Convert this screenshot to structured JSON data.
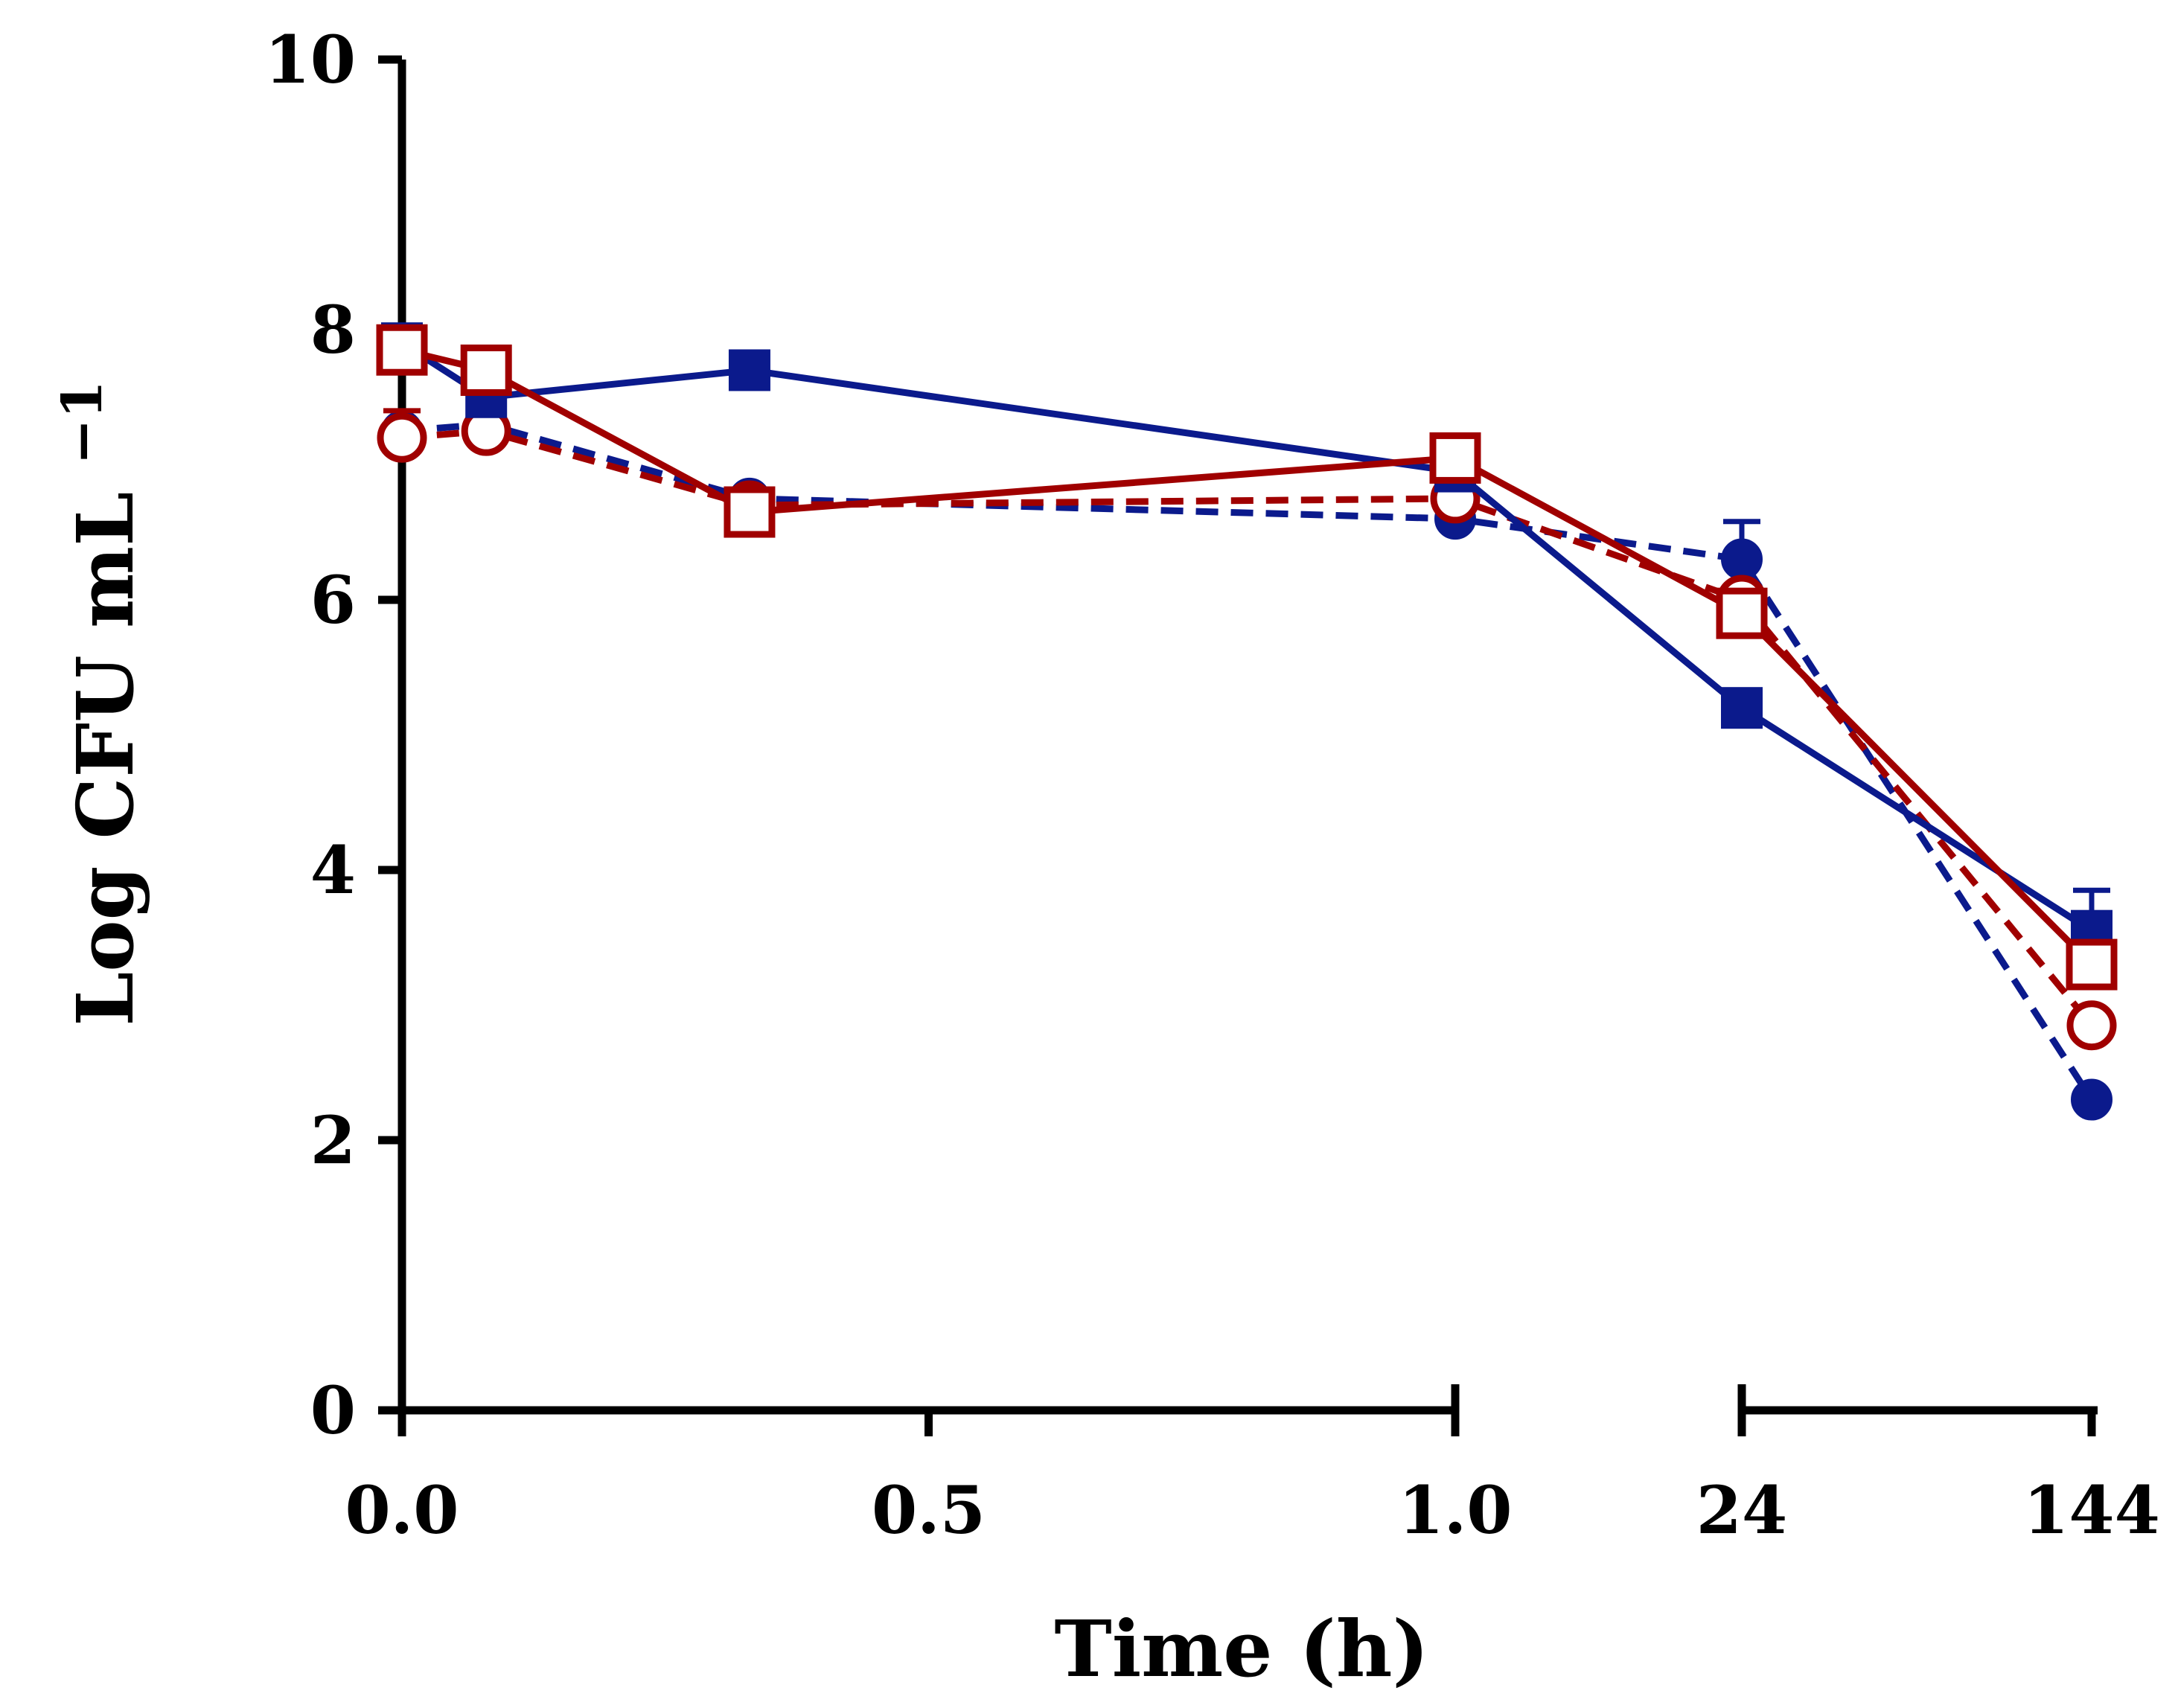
{
  "chart_data": {
    "type": "line",
    "title": "",
    "xlabel": "Time (h)",
    "ylabel": "Log CFU mL",
    "ylabel_superscript": "−1",
    "ylim": [
      0,
      10
    ],
    "yticks": [
      "0",
      "2",
      "4",
      "6",
      "8",
      "10"
    ],
    "xticks": [
      "0.0",
      "0.5",
      "1.0",
      "24",
      "144"
    ],
    "x_axis_note": "broken axis: linear 0.0–1.0 h, then segment 24–144 h",
    "series": [
      {
        "name": "blue solid filled square",
        "color": "#0b1a8c",
        "line": "solid",
        "marker": "square",
        "filled": true,
        "points": [
          {
            "x": "0.0",
            "y": 7.9
          },
          {
            "x": "0.08",
            "y": 7.5,
            "err": 0.12
          },
          {
            "x": "0.33",
            "y": 7.7
          },
          {
            "x": "1.0",
            "y": 6.95
          },
          {
            "x": "24",
            "y": 5.2
          },
          {
            "x": "144",
            "y": 3.55,
            "err": 0.3
          }
        ]
      },
      {
        "name": "blue dashed filled circle",
        "color": "#0b1a8c",
        "line": "dashed",
        "marker": "circle",
        "filled": true,
        "points": [
          {
            "x": "0.0",
            "y": 7.25
          },
          {
            "x": "0.08",
            "y": 7.3
          },
          {
            "x": "0.33",
            "y": 6.75
          },
          {
            "x": "1.0",
            "y": 6.6
          },
          {
            "x": "24",
            "y": 6.3,
            "err": 0.28
          },
          {
            "x": "144",
            "y": 2.3
          }
        ]
      },
      {
        "name": "red solid open square",
        "color": "#a00000",
        "line": "solid",
        "marker": "square",
        "filled": false,
        "points": [
          {
            "x": "0.0",
            "y": 7.85
          },
          {
            "x": "0.08",
            "y": 7.7
          },
          {
            "x": "0.33",
            "y": 6.65
          },
          {
            "x": "1.0",
            "y": 7.05
          },
          {
            "x": "24",
            "y": 5.9
          },
          {
            "x": "144",
            "y": 3.3
          }
        ]
      },
      {
        "name": "red dashed open circle",
        "color": "#a00000",
        "line": "dashed",
        "marker": "circle",
        "filled": false,
        "points": [
          {
            "x": "0.0",
            "y": 7.2,
            "err": 0.2
          },
          {
            "x": "0.08",
            "y": 7.25,
            "err": 0.28
          },
          {
            "x": "0.33",
            "y": 6.7
          },
          {
            "x": "1.0",
            "y": 6.75
          },
          {
            "x": "24",
            "y": 6.0
          },
          {
            "x": "144",
            "y": 2.85
          }
        ]
      }
    ]
  }
}
